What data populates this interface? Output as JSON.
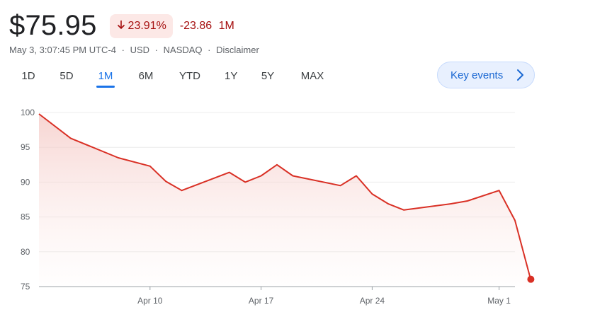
{
  "quote": {
    "price": "$75.95",
    "change_percent": "23.91%",
    "change_abs": "-23.86",
    "period_label": "1M",
    "timestamp": "May 3, 3:07:45 PM UTC-4",
    "currency": "USD",
    "exchange": "NASDAQ",
    "disclaimer": "Disclaimer",
    "separator": "·"
  },
  "tabs": [
    {
      "label": "1D",
      "active": false
    },
    {
      "label": "5D",
      "active": false
    },
    {
      "label": "1M",
      "active": true
    },
    {
      "label": "6M",
      "active": false
    },
    {
      "label": "YTD",
      "active": false
    },
    {
      "label": "1Y",
      "active": false
    },
    {
      "label": "5Y",
      "active": false
    },
    {
      "label": "MAX",
      "active": false
    }
  ],
  "key_events": {
    "label": "Key events",
    "icon": "chevron-right-icon"
  },
  "colors": {
    "negative": "#a50e0e",
    "negative_bg": "#fce8e6",
    "line": "#d93025",
    "accent": "#1a73e8",
    "key_events_bg": "#e8f0fe"
  },
  "chart_data": {
    "type": "area",
    "title": "",
    "xlabel": "",
    "ylabel": "",
    "ylim": [
      75,
      100
    ],
    "yticks": [
      100,
      95,
      90,
      85,
      80,
      75
    ],
    "xticks": [
      "Apr 10",
      "Apr 17",
      "Apr 24",
      "May 1"
    ],
    "grid": true,
    "series": [
      {
        "x": [
          "Apr 3",
          "Apr 5",
          "Apr 8",
          "Apr 10",
          "Apr 11",
          "Apr 12",
          "Apr 15",
          "Apr 16",
          "Apr 17",
          "Apr 18",
          "Apr 19",
          "Apr 22",
          "Apr 23",
          "Apr 24",
          "Apr 25",
          "Apr 26",
          "Apr 29",
          "Apr 30",
          "May 1",
          "May 2",
          "May 3"
        ],
        "values": [
          99.8,
          96.3,
          93.5,
          92.3,
          90.1,
          88.8,
          91.4,
          90.0,
          90.9,
          92.5,
          90.9,
          89.5,
          90.9,
          88.3,
          86.9,
          86.0,
          86.9,
          87.3,
          88.8,
          84.5,
          75.95
        ]
      }
    ]
  }
}
